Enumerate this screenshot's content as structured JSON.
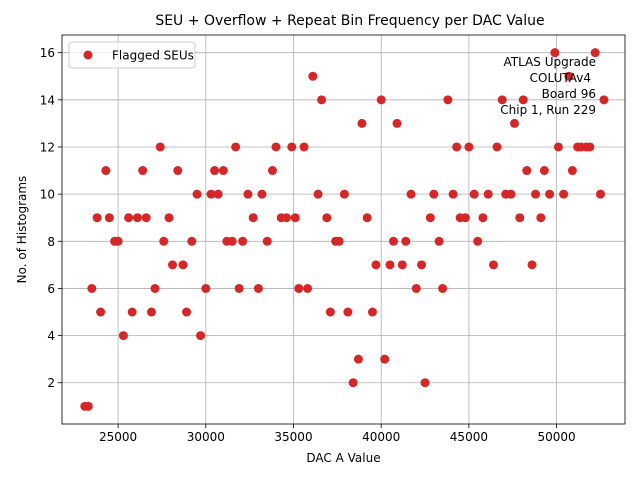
{
  "chart_data": {
    "type": "scatter",
    "title": "SEU + Overflow + Repeat Bin Frequency per DAC Value",
    "xlabel": "DAC A Value",
    "ylabel": "No. of Histograms",
    "xlim": [
      21800,
      53900
    ],
    "ylim": [
      0.25,
      16.75
    ],
    "xticks": [
      25000,
      30000,
      35000,
      40000,
      45000,
      50000
    ],
    "yticks": [
      2,
      4,
      6,
      8,
      10,
      12,
      14,
      16
    ],
    "grid": true,
    "legend": {
      "position": "top-left",
      "entries": [
        "Flagged SEUs"
      ]
    },
    "annotation": [
      "ATLAS Upgrade",
      "COLUTAv4",
      "Board 96",
      "Chip 1, Run 229"
    ],
    "marker_color": "#d62728",
    "series": [
      {
        "name": "Flagged SEUs",
        "points": [
          [
            23100,
            1
          ],
          [
            23300,
            1
          ],
          [
            23500,
            6
          ],
          [
            23800,
            9
          ],
          [
            24000,
            5
          ],
          [
            24300,
            11
          ],
          [
            24500,
            9
          ],
          [
            24800,
            8
          ],
          [
            25000,
            8
          ],
          [
            25300,
            4
          ],
          [
            25600,
            9
          ],
          [
            25800,
            5
          ],
          [
            26100,
            9
          ],
          [
            26400,
            11
          ],
          [
            26600,
            9
          ],
          [
            26900,
            5
          ],
          [
            27100,
            6
          ],
          [
            27400,
            12
          ],
          [
            27600,
            8
          ],
          [
            27900,
            9
          ],
          [
            28100,
            7
          ],
          [
            28400,
            11
          ],
          [
            28700,
            7
          ],
          [
            28900,
            5
          ],
          [
            29200,
            8
          ],
          [
            29500,
            10
          ],
          [
            29700,
            4
          ],
          [
            30000,
            6
          ],
          [
            30300,
            10
          ],
          [
            30500,
            11
          ],
          [
            30700,
            10
          ],
          [
            31000,
            11
          ],
          [
            31200,
            8
          ],
          [
            31500,
            8
          ],
          [
            31700,
            12
          ],
          [
            31900,
            6
          ],
          [
            32100,
            8
          ],
          [
            32400,
            10
          ],
          [
            32700,
            9
          ],
          [
            33000,
            6
          ],
          [
            33200,
            10
          ],
          [
            33500,
            8
          ],
          [
            33800,
            11
          ],
          [
            34000,
            12
          ],
          [
            34300,
            9
          ],
          [
            34600,
            9
          ],
          [
            34900,
            12
          ],
          [
            35100,
            9
          ],
          [
            35300,
            6
          ],
          [
            35600,
            12
          ],
          [
            35800,
            6
          ],
          [
            36100,
            15
          ],
          [
            36400,
            10
          ],
          [
            36600,
            14
          ],
          [
            36900,
            9
          ],
          [
            37100,
            5
          ],
          [
            37400,
            8
          ],
          [
            37600,
            8
          ],
          [
            37900,
            10
          ],
          [
            38100,
            5
          ],
          [
            38400,
            2
          ],
          [
            38700,
            3
          ],
          [
            38900,
            13
          ],
          [
            39200,
            9
          ],
          [
            39500,
            5
          ],
          [
            39700,
            7
          ],
          [
            40000,
            14
          ],
          [
            40200,
            3
          ],
          [
            40500,
            7
          ],
          [
            40700,
            8
          ],
          [
            40900,
            13
          ],
          [
            41200,
            7
          ],
          [
            41400,
            8
          ],
          [
            41700,
            10
          ],
          [
            42000,
            6
          ],
          [
            42300,
            7
          ],
          [
            42500,
            2
          ],
          [
            42800,
            9
          ],
          [
            43000,
            10
          ],
          [
            43300,
            8
          ],
          [
            43500,
            6
          ],
          [
            43800,
            14
          ],
          [
            44100,
            10
          ],
          [
            44300,
            12
          ],
          [
            44500,
            9
          ],
          [
            44800,
            9
          ],
          [
            45000,
            12
          ],
          [
            45300,
            10
          ],
          [
            45500,
            8
          ],
          [
            45800,
            9
          ],
          [
            46100,
            10
          ],
          [
            46400,
            7
          ],
          [
            46600,
            12
          ],
          [
            46900,
            14
          ],
          [
            47100,
            10
          ],
          [
            47400,
            10
          ],
          [
            47600,
            13
          ],
          [
            47900,
            9
          ],
          [
            48100,
            14
          ],
          [
            48300,
            11
          ],
          [
            48600,
            7
          ],
          [
            48800,
            10
          ],
          [
            49100,
            9
          ],
          [
            49300,
            11
          ],
          [
            49600,
            10
          ],
          [
            49900,
            16
          ],
          [
            50100,
            12
          ],
          [
            50400,
            10
          ],
          [
            50700,
            15
          ],
          [
            50900,
            11
          ],
          [
            51200,
            12
          ],
          [
            51400,
            12
          ],
          [
            51700,
            12
          ],
          [
            51900,
            12
          ],
          [
            52200,
            16
          ],
          [
            52500,
            10
          ],
          [
            52700,
            14
          ]
        ]
      }
    ]
  }
}
